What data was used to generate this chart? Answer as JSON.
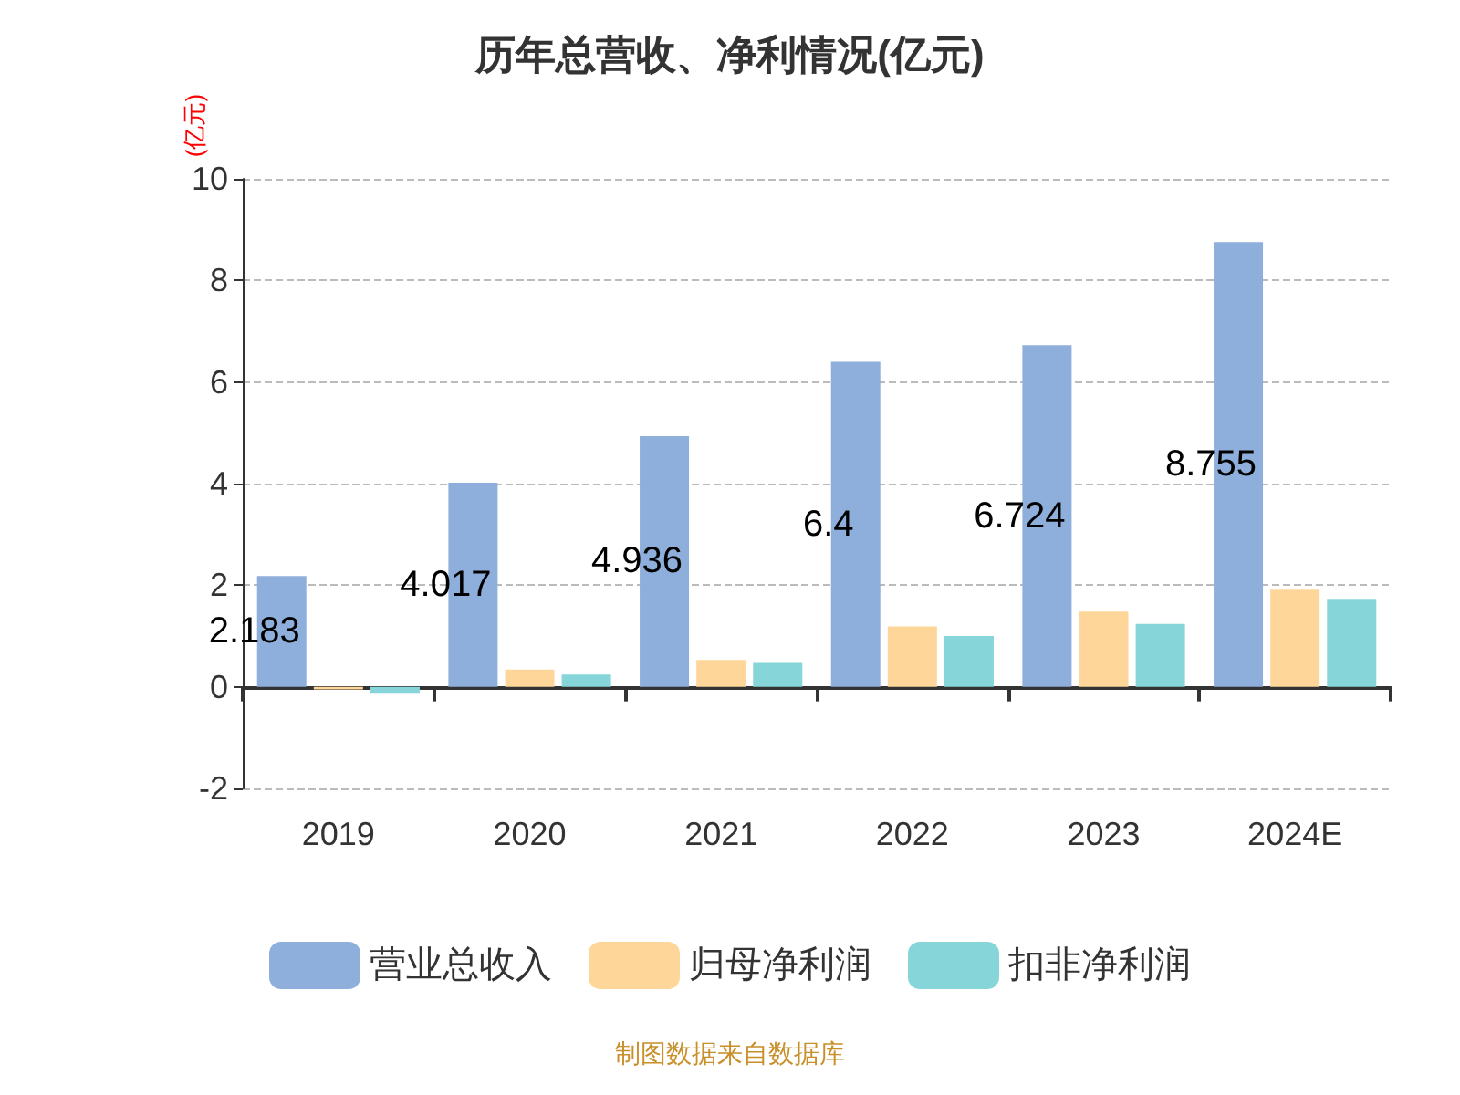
{
  "chart_data": {
    "type": "bar",
    "title": "历年总营收、净利情况(亿元)",
    "ylabel": "(亿元)",
    "categories": [
      "2019",
      "2020",
      "2021",
      "2022",
      "2023",
      "2024E"
    ],
    "series": [
      {
        "name": "营业总收入",
        "color": "#8eaedb",
        "values": [
          2.183,
          4.017,
          4.936,
          6.4,
          6.724,
          8.755
        ],
        "value_labels": [
          "2.183",
          "4.017",
          "4.936",
          "6.4",
          "6.724",
          "8.755"
        ]
      },
      {
        "name": "归母净利润",
        "color": "#ffd699",
        "values": [
          -0.05,
          0.34,
          0.53,
          1.19,
          1.48,
          1.91
        ]
      },
      {
        "name": "扣非净利润",
        "color": "#86d5d8",
        "values": [
          -0.12,
          0.24,
          0.47,
          1.0,
          1.24,
          1.73
        ]
      }
    ],
    "ylim": [
      -2,
      10
    ],
    "yticks": [
      -2,
      0,
      2,
      4,
      6,
      8,
      10
    ],
    "grid": "y",
    "legend": "bottom",
    "annotations": [
      "制图数据来自数据库"
    ]
  }
}
